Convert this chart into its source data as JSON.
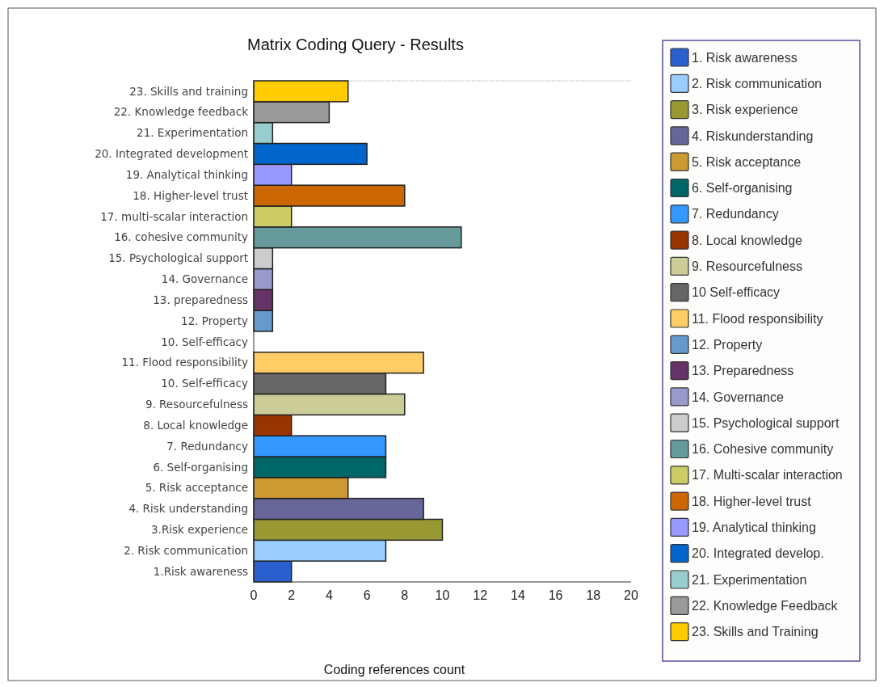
{
  "chart_data": {
    "type": "bar",
    "orientation": "horizontal",
    "stacked": true,
    "title": "Matrix Coding Query - Results",
    "xlabel": "Coding references count",
    "xlim": [
      0,
      20
    ],
    "xticks": [
      0,
      2,
      4,
      6,
      8,
      10,
      12,
      14,
      16,
      18,
      20
    ],
    "grid": false,
    "legend": "right",
    "categories": [
      "23. Skills and training",
      "22. Knowledge feedback",
      "21. Experimentation",
      "20. Integrated development",
      "19. Analytical thinking",
      "18. Higher-level trust",
      "17. multi-scalar interaction",
      "16. cohesive community",
      "15. Psychological support",
      "14. Governance",
      "13. preparedness",
      "12. Property",
      "10. Self-efficacy",
      "11. Flood responsibility",
      "10. Self-efficacy",
      "9. Resourcefulness",
      "8. Local knowledge",
      "7. Redundancy",
      "6. Self-organising",
      "5. Risk acceptance",
      "4. Risk understanding",
      "3.Risk experience",
      "2. Risk communication",
      "1.Risk awareness"
    ],
    "series": [
      {
        "name": "1. Risk awareness",
        "color": "#2b5fce",
        "values": [
          null,
          null,
          null,
          null,
          null,
          null,
          null,
          null,
          null,
          null,
          null,
          null,
          null,
          null,
          null,
          null,
          null,
          null,
          null,
          null,
          null,
          null,
          null,
          2
        ]
      },
      {
        "name": "2. Risk communication",
        "color": "#99ccff",
        "values": [
          null,
          null,
          null,
          null,
          null,
          null,
          null,
          null,
          null,
          null,
          null,
          null,
          null,
          null,
          null,
          null,
          null,
          null,
          null,
          null,
          null,
          null,
          7,
          null
        ]
      },
      {
        "name": "3. Risk experience",
        "color": "#999933",
        "values": [
          null,
          null,
          null,
          null,
          null,
          null,
          null,
          null,
          null,
          null,
          null,
          null,
          null,
          null,
          null,
          null,
          null,
          null,
          null,
          null,
          null,
          10,
          null,
          null
        ]
      },
      {
        "name": "4. Riskunderstanding",
        "color": "#666699",
        "values": [
          null,
          null,
          null,
          null,
          null,
          null,
          null,
          null,
          null,
          null,
          null,
          null,
          null,
          null,
          null,
          null,
          null,
          null,
          null,
          null,
          9,
          null,
          null,
          null
        ]
      },
      {
        "name": "5. Risk acceptance",
        "color": "#cc9933",
        "values": [
          null,
          null,
          null,
          null,
          null,
          null,
          null,
          null,
          null,
          null,
          null,
          null,
          null,
          null,
          null,
          null,
          null,
          null,
          null,
          5,
          null,
          null,
          null,
          null
        ]
      },
      {
        "name": "6. Self-organising",
        "color": "#006666",
        "values": [
          null,
          null,
          null,
          null,
          null,
          null,
          null,
          null,
          null,
          null,
          null,
          null,
          null,
          null,
          null,
          null,
          null,
          null,
          7,
          null,
          null,
          null,
          null,
          null
        ]
      },
      {
        "name": "7. Redundancy",
        "color": "#3399ff",
        "values": [
          null,
          null,
          null,
          null,
          null,
          null,
          null,
          null,
          null,
          null,
          null,
          null,
          null,
          null,
          null,
          null,
          null,
          7,
          null,
          null,
          null,
          null,
          null,
          null
        ]
      },
      {
        "name": "8. Local knowledge",
        "color": "#993300",
        "values": [
          null,
          null,
          null,
          null,
          null,
          null,
          null,
          null,
          null,
          null,
          null,
          null,
          null,
          null,
          null,
          null,
          2,
          null,
          null,
          null,
          null,
          null,
          null,
          null
        ]
      },
      {
        "name": "9. Resourcefulness",
        "color": "#cccc99",
        "values": [
          null,
          null,
          null,
          null,
          null,
          null,
          null,
          null,
          null,
          null,
          null,
          null,
          null,
          null,
          null,
          8,
          null,
          null,
          null,
          null,
          null,
          null,
          null,
          null
        ]
      },
      {
        "name": "10 Self-efficacy",
        "color": "#666666",
        "values": [
          null,
          null,
          null,
          null,
          null,
          null,
          null,
          null,
          null,
          null,
          null,
          null,
          null,
          null,
          7,
          null,
          null,
          null,
          null,
          null,
          null,
          null,
          null,
          null
        ]
      },
      {
        "name": "11. Flood responsibility",
        "color": "#ffcc66",
        "values": [
          null,
          null,
          null,
          null,
          null,
          null,
          null,
          null,
          null,
          null,
          null,
          null,
          null,
          9,
          null,
          null,
          null,
          null,
          null,
          null,
          null,
          null,
          null,
          null
        ]
      },
      {
        "name": "12. Property",
        "color": "#6699cc",
        "values": [
          null,
          null,
          null,
          null,
          null,
          null,
          null,
          null,
          null,
          null,
          null,
          1,
          null,
          null,
          null,
          null,
          null,
          null,
          null,
          null,
          null,
          null,
          null,
          null
        ]
      },
      {
        "name": "13. Preparedness",
        "color": "#663366",
        "values": [
          null,
          null,
          null,
          null,
          null,
          null,
          null,
          null,
          null,
          null,
          1,
          null,
          null,
          null,
          null,
          null,
          null,
          null,
          null,
          null,
          null,
          null,
          null,
          null
        ]
      },
      {
        "name": "14. Governance",
        "color": "#9999cc",
        "values": [
          null,
          null,
          null,
          null,
          null,
          null,
          null,
          null,
          null,
          1,
          null,
          null,
          null,
          null,
          null,
          null,
          null,
          null,
          null,
          null,
          null,
          null,
          null,
          null
        ]
      },
      {
        "name": "15. Psychological support",
        "color": "#cccccc",
        "values": [
          null,
          null,
          null,
          null,
          null,
          null,
          null,
          null,
          1,
          null,
          null,
          null,
          null,
          null,
          null,
          null,
          null,
          null,
          null,
          null,
          null,
          null,
          null,
          null
        ]
      },
      {
        "name": "16. Cohesive community",
        "color": "#669999",
        "values": [
          null,
          null,
          null,
          null,
          null,
          null,
          null,
          11,
          null,
          null,
          null,
          null,
          null,
          null,
          null,
          null,
          null,
          null,
          null,
          null,
          null,
          null,
          null,
          null
        ]
      },
      {
        "name": "17. Multi-scalar interaction",
        "color": "#cccc66",
        "values": [
          null,
          null,
          null,
          null,
          null,
          null,
          2,
          null,
          null,
          null,
          null,
          null,
          null,
          null,
          null,
          null,
          null,
          null,
          null,
          null,
          null,
          null,
          null,
          null
        ]
      },
      {
        "name": "18. Higher-level trust",
        "color": "#cc6600",
        "values": [
          null,
          null,
          null,
          null,
          null,
          8,
          null,
          null,
          null,
          null,
          null,
          null,
          null,
          null,
          null,
          null,
          null,
          null,
          null,
          null,
          null,
          null,
          null,
          null
        ]
      },
      {
        "name": "19. Analytical thinking",
        "color": "#9999ff",
        "values": [
          null,
          null,
          null,
          null,
          2,
          null,
          null,
          null,
          null,
          null,
          null,
          null,
          null,
          null,
          null,
          null,
          null,
          null,
          null,
          null,
          null,
          null,
          null,
          null
        ]
      },
      {
        "name": "20. Integrated develop.",
        "color": "#0066cc",
        "values": [
          null,
          null,
          null,
          6,
          null,
          null,
          null,
          null,
          null,
          null,
          null,
          null,
          null,
          null,
          null,
          null,
          null,
          null,
          null,
          null,
          null,
          null,
          null,
          null
        ]
      },
      {
        "name": "21. Experimentation",
        "color": "#99cccc",
        "values": [
          null,
          null,
          1,
          null,
          null,
          null,
          null,
          null,
          null,
          null,
          null,
          null,
          null,
          null,
          null,
          null,
          null,
          null,
          null,
          null,
          null,
          null,
          null,
          null
        ]
      },
      {
        "name": "22. Knowledge Feedback",
        "color": "#999999",
        "values": [
          null,
          4,
          null,
          null,
          null,
          null,
          null,
          null,
          null,
          null,
          null,
          null,
          null,
          null,
          null,
          null,
          null,
          null,
          null,
          null,
          null,
          null,
          null,
          null
        ]
      },
      {
        "name": "23. Skills and Training",
        "color": "#ffcc00",
        "values": [
          5,
          null,
          null,
          null,
          null,
          null,
          null,
          null,
          null,
          null,
          null,
          null,
          null,
          null,
          null,
          null,
          null,
          null,
          null,
          null,
          null,
          null,
          null,
          null
        ]
      }
    ]
  }
}
